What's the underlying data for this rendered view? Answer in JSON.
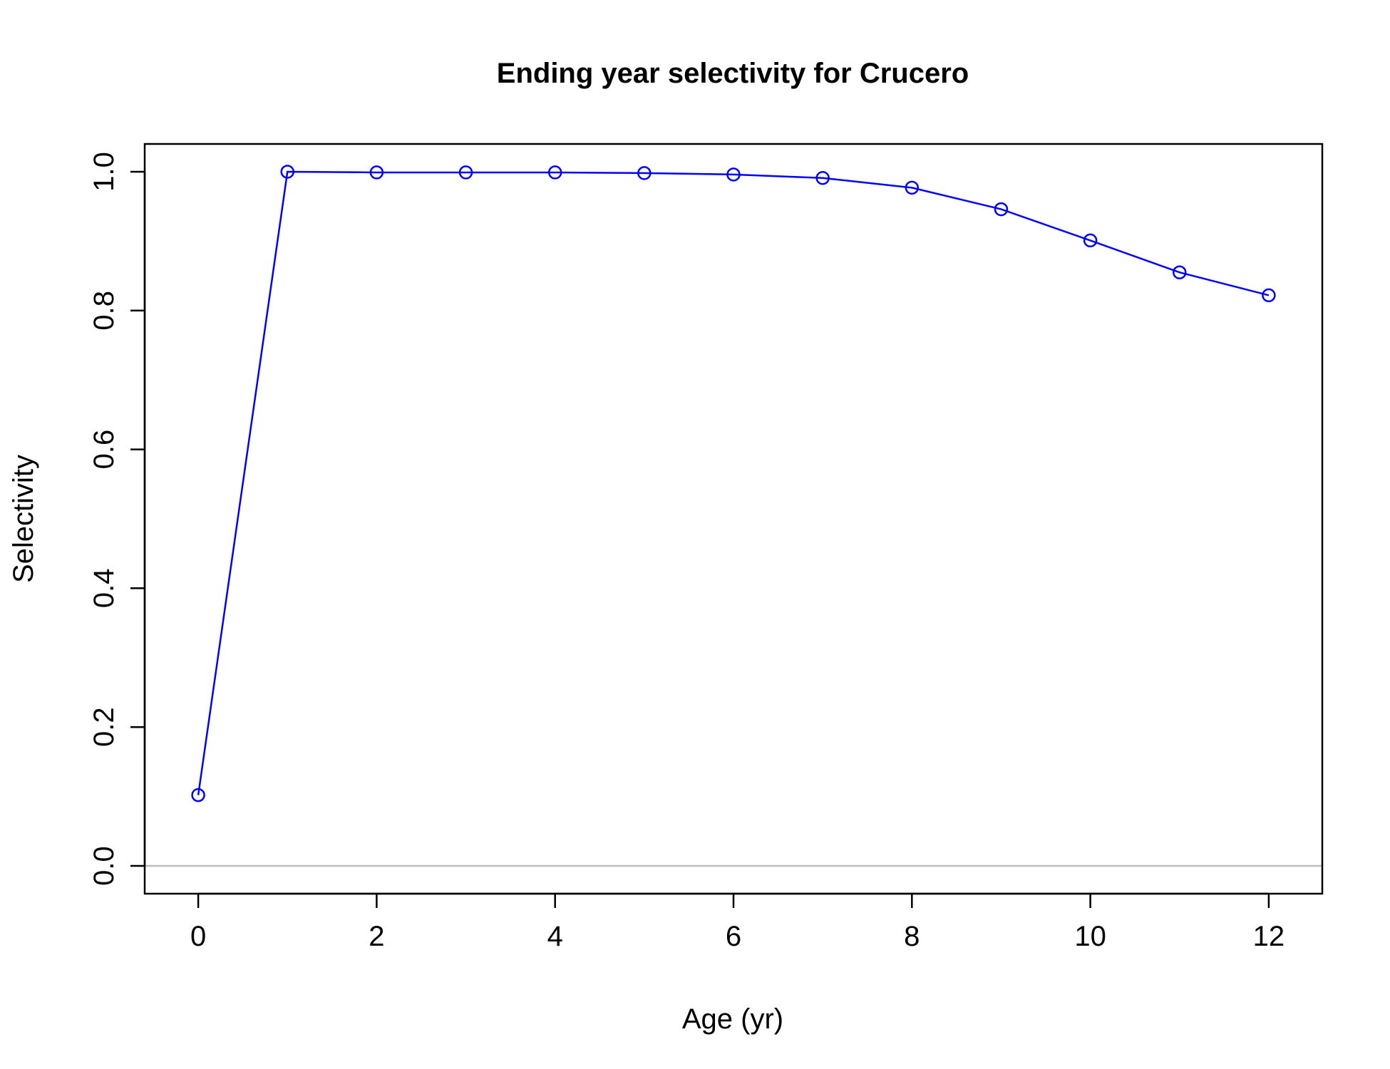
{
  "chart_data": {
    "type": "line",
    "title": "Ending year selectivity for Crucero",
    "xlabel": "Age (yr)",
    "ylabel": "Selectivity",
    "xlim": [
      -0.6,
      12.6
    ],
    "ylim": [
      -0.04,
      1.04
    ],
    "xticks": [
      0,
      2,
      4,
      6,
      8,
      10,
      12
    ],
    "xtick_labels": [
      "0",
      "2",
      "4",
      "6",
      "8",
      "10",
      "12"
    ],
    "yticks": [
      0.0,
      0.2,
      0.4,
      0.6,
      0.8,
      1.0
    ],
    "ytick_labels": [
      "0.0",
      "0.2",
      "0.4",
      "0.6",
      "0.8",
      "1.0"
    ],
    "reference_line": {
      "y": 0,
      "color": "#bebebe"
    },
    "grid": false,
    "series": [
      {
        "color": "#0000ff",
        "marker": "open-circle",
        "x": [
          0,
          1,
          2,
          3,
          4,
          5,
          6,
          7,
          8,
          9,
          10,
          11,
          12
        ],
        "y": [
          0.102,
          1.0,
          0.999,
          0.999,
          0.999,
          0.998,
          0.996,
          0.991,
          0.977,
          0.946,
          0.901,
          0.855,
          0.822
        ]
      }
    ]
  }
}
